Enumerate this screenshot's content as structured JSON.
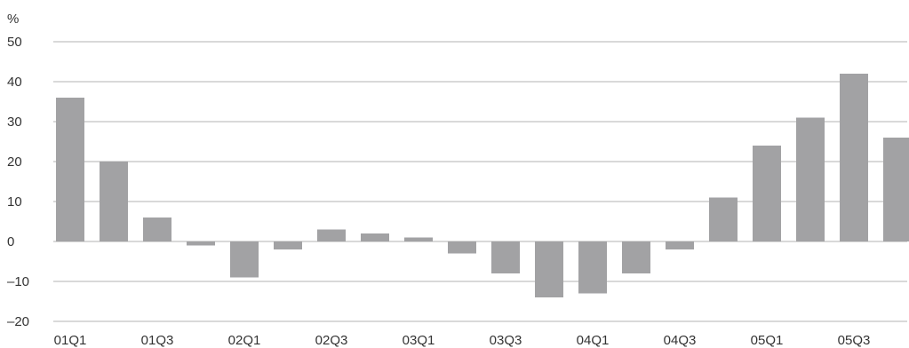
{
  "chart_data": {
    "type": "bar",
    "unit_label": "%",
    "categories": [
      "01Q1",
      "01Q2",
      "01Q3",
      "01Q4",
      "02Q1",
      "02Q2",
      "02Q3",
      "02Q4",
      "03Q1",
      "03Q2",
      "03Q3",
      "03Q4",
      "04Q1",
      "04Q2",
      "04Q3",
      "04Q4",
      "05Q1",
      "05Q2",
      "05Q3",
      "05Q4"
    ],
    "x_tick_labels": [
      "01Q1",
      "01Q3",
      "02Q1",
      "02Q3",
      "03Q1",
      "03Q3",
      "04Q1",
      "04Q3",
      "05Q1",
      "05Q3"
    ],
    "values": [
      36,
      20,
      6,
      -1,
      -9,
      -2,
      3,
      2,
      1,
      -3,
      -8,
      -14,
      -13,
      -8,
      -2,
      11,
      24,
      31,
      42,
      26
    ],
    "ylim": [
      -20,
      50
    ],
    "y_ticks": [
      "50",
      "40",
      "30",
      "20",
      "10",
      "0",
      "–10",
      "–20"
    ],
    "grid": true,
    "bar_color": "#a2a2a4",
    "grid_color": "#b3b3b3"
  }
}
